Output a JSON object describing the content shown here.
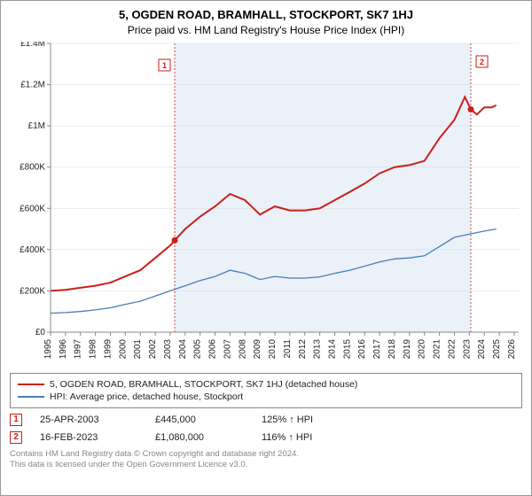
{
  "title": "5, OGDEN ROAD, BRAMHALL, STOCKPORT, SK7 1HJ",
  "subtitle": "Price paid vs. HM Land Registry's House Price Index (HPI)",
  "chart": {
    "type": "line",
    "background_color": "#ffffff",
    "shade_color": "#eaf1f9",
    "hatch_color": "#333333",
    "grid_color": "#d9d9d9",
    "axis_color": "#888888",
    "tick_fontsize": 10,
    "label_fontsize": 10,
    "x": {
      "min": 1995,
      "max": 2026.3,
      "ticks": [
        1995,
        1996,
        1997,
        1998,
        1999,
        2000,
        2001,
        2002,
        2003,
        2004,
        2005,
        2006,
        2007,
        2008,
        2009,
        2010,
        2011,
        2012,
        2013,
        2014,
        2015,
        2016,
        2017,
        2018,
        2019,
        2020,
        2021,
        2022,
        2023,
        2024,
        2025,
        2026
      ]
    },
    "y": {
      "min": 0,
      "max": 1400000,
      "tick_step": 200000,
      "tick_labels": [
        "£0",
        "£200K",
        "£400K",
        "£600K",
        "£800K",
        "£1M",
        "£1.2M",
        "£1.4M"
      ]
    },
    "shade_range": [
      2003.3,
      2023.1
    ],
    "hatch_range": [
      2024.8,
      2026.3
    ],
    "series": [
      {
        "name": "5, OGDEN ROAD, BRAMHALL, STOCKPORT, SK7 1HJ (detached house)",
        "color": "#cc1f1a",
        "width": 2,
        "points": [
          [
            1995,
            200000
          ],
          [
            1996,
            205000
          ],
          [
            1997,
            215000
          ],
          [
            1998,
            225000
          ],
          [
            1999,
            240000
          ],
          [
            2000,
            270000
          ],
          [
            2001,
            300000
          ],
          [
            2002,
            360000
          ],
          [
            2003,
            420000
          ],
          [
            2003.3,
            445000
          ],
          [
            2004,
            500000
          ],
          [
            2005,
            560000
          ],
          [
            2006,
            610000
          ],
          [
            2007,
            670000
          ],
          [
            2008,
            640000
          ],
          [
            2009,
            570000
          ],
          [
            2010,
            610000
          ],
          [
            2011,
            590000
          ],
          [
            2012,
            590000
          ],
          [
            2013,
            600000
          ],
          [
            2014,
            640000
          ],
          [
            2015,
            680000
          ],
          [
            2016,
            720000
          ],
          [
            2017,
            770000
          ],
          [
            2018,
            800000
          ],
          [
            2019,
            810000
          ],
          [
            2020,
            830000
          ],
          [
            2021,
            940000
          ],
          [
            2022,
            1030000
          ],
          [
            2022.7,
            1140000
          ],
          [
            2023.1,
            1080000
          ],
          [
            2023.5,
            1055000
          ],
          [
            2024,
            1090000
          ],
          [
            2024.5,
            1090000
          ],
          [
            2024.8,
            1100000
          ]
        ]
      },
      {
        "name": "HPI: Average price, detached house, Stockport",
        "color": "#4a7db8",
        "width": 1.3,
        "points": [
          [
            1995,
            92000
          ],
          [
            1996,
            95000
          ],
          [
            1997,
            100000
          ],
          [
            1998,
            108000
          ],
          [
            1999,
            118000
          ],
          [
            2000,
            135000
          ],
          [
            2001,
            150000
          ],
          [
            2002,
            175000
          ],
          [
            2003,
            200000
          ],
          [
            2004,
            225000
          ],
          [
            2005,
            250000
          ],
          [
            2006,
            270000
          ],
          [
            2007,
            300000
          ],
          [
            2008,
            285000
          ],
          [
            2009,
            255000
          ],
          [
            2010,
            270000
          ],
          [
            2011,
            262000
          ],
          [
            2012,
            262000
          ],
          [
            2013,
            268000
          ],
          [
            2014,
            285000
          ],
          [
            2015,
            300000
          ],
          [
            2016,
            320000
          ],
          [
            2017,
            340000
          ],
          [
            2018,
            355000
          ],
          [
            2019,
            360000
          ],
          [
            2020,
            370000
          ],
          [
            2021,
            415000
          ],
          [
            2022,
            460000
          ],
          [
            2023,
            475000
          ],
          [
            2024,
            490000
          ],
          [
            2024.8,
            500000
          ]
        ]
      }
    ],
    "markers": [
      {
        "label": "1",
        "x": 2003.3,
        "y": 445000,
        "color": "#cc1f1a"
      },
      {
        "label": "2",
        "x": 2023.1,
        "y": 1080000,
        "color": "#cc1f1a"
      }
    ]
  },
  "legend": {
    "items": [
      {
        "color": "#cc1f1a",
        "label": "5, OGDEN ROAD, BRAMHALL, STOCKPORT, SK7 1HJ (detached house)"
      },
      {
        "color": "#4a7db8",
        "label": "HPI: Average price, detached house, Stockport"
      }
    ]
  },
  "transactions": [
    {
      "badge": "1",
      "date": "25-APR-2003",
      "price": "£445,000",
      "hpi": "125% ↑ HPI"
    },
    {
      "badge": "2",
      "date": "16-FEB-2023",
      "price": "£1,080,000",
      "hpi": "116% ↑ HPI"
    }
  ],
  "footer_line1": "Contains HM Land Registry data © Crown copyright and database right 2024.",
  "footer_line2": "This data is licensed under the Open Government Licence v3.0."
}
